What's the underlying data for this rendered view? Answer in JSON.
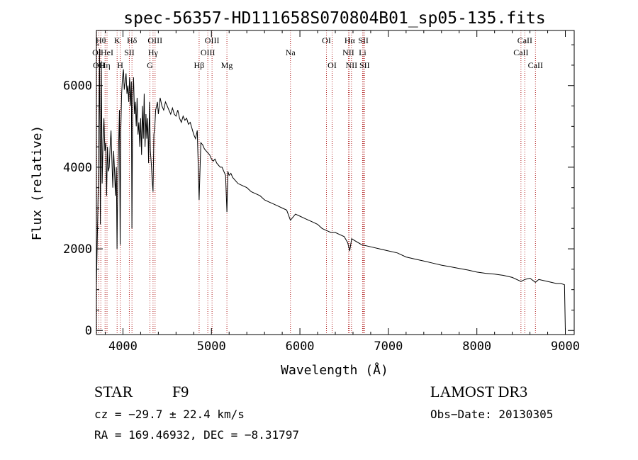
{
  "chart_data": {
    "type": "line",
    "title": "spec-56357-HD111658S070804B01_sp05-135.fits",
    "xlabel": "Wavelength (Å)",
    "ylabel": "Flux (relative)",
    "xlim": [
      3700,
      9100
    ],
    "ylim": [
      -100,
      7350
    ],
    "xticks": [
      4000,
      5000,
      6000,
      7000,
      8000,
      9000
    ],
    "yticks": [
      0,
      2000,
      4000,
      6000
    ],
    "grid": false,
    "line_color": "#000000",
    "marker_color": "#b22222",
    "spectrum": {
      "x": [
        3700,
        3715,
        3725,
        3735,
        3745,
        3755,
        3765,
        3775,
        3785,
        3795,
        3805,
        3815,
        3825,
        3835,
        3845,
        3855,
        3865,
        3875,
        3885,
        3895,
        3905,
        3915,
        3925,
        3933,
        3940,
        3950,
        3960,
        3968,
        3975,
        3985,
        3995,
        4005,
        4015,
        4025,
        4035,
        4045,
        4055,
        4065,
        4075,
        4085,
        4095,
        4101,
        4110,
        4120,
        4130,
        4140,
        4150,
        4160,
        4170,
        4180,
        4190,
        4200,
        4210,
        4220,
        4230,
        4240,
        4250,
        4260,
        4270,
        4280,
        4290,
        4300,
        4310,
        4320,
        4330,
        4340,
        4350,
        4360,
        4370,
        4380,
        4390,
        4400,
        4420,
        4440,
        4460,
        4480,
        4500,
        4520,
        4540,
        4560,
        4580,
        4600,
        4620,
        4640,
        4660,
        4680,
        4700,
        4720,
        4740,
        4760,
        4780,
        4800,
        4820,
        4840,
        4861,
        4880,
        4900,
        4920,
        4940,
        4960,
        4980,
        5000,
        5020,
        5040,
        5060,
        5080,
        5100,
        5120,
        5140,
        5160,
        5175,
        5185,
        5200,
        5220,
        5240,
        5260,
        5280,
        5300,
        5350,
        5400,
        5450,
        5500,
        5550,
        5600,
        5650,
        5700,
        5750,
        5800,
        5850,
        5893,
        5950,
        6000,
        6050,
        6100,
        6150,
        6200,
        6250,
        6300,
        6350,
        6400,
        6450,
        6500,
        6540,
        6563,
        6585,
        6620,
        6700,
        6800,
        6900,
        7000,
        7100,
        7200,
        7300,
        7400,
        7500,
        7600,
        7700,
        7800,
        7900,
        8000,
        8100,
        8200,
        8300,
        8400,
        8498,
        8542,
        8600,
        8662,
        8700,
        8800,
        8900,
        8950,
        8990,
        9000
      ],
      "y": [
        1100,
        2800,
        4200,
        6900,
        2600,
        6600,
        3600,
        4700,
        5200,
        4400,
        4600,
        3300,
        4500,
        3900,
        4000,
        4500,
        4900,
        4200,
        3500,
        4400,
        3900,
        3300,
        4000,
        2000,
        3600,
        4400,
        5400,
        2100,
        4800,
        5800,
        6200,
        6400,
        5900,
        6100,
        6300,
        5800,
        6000,
        5600,
        6200,
        5500,
        6100,
        2500,
        5700,
        6200,
        5300,
        5600,
        5000,
        5700,
        4800,
        5100,
        4500,
        5200,
        4300,
        5500,
        4700,
        5800,
        4500,
        5300,
        4700,
        5200,
        4100,
        5600,
        4400,
        4100,
        3700,
        3400,
        4800,
        5000,
        5400,
        5500,
        5600,
        5300,
        5700,
        5500,
        5400,
        5600,
        5500,
        5400,
        5300,
        5450,
        5300,
        5250,
        5400,
        5200,
        5100,
        5250,
        5150,
        5200,
        5050,
        5100,
        4950,
        4800,
        4700,
        4900,
        3200,
        4600,
        4550,
        4450,
        4400,
        4350,
        4300,
        4200,
        4150,
        4200,
        4100,
        4050,
        4000,
        4000,
        3900,
        3800,
        2900,
        3900,
        3800,
        3850,
        3750,
        3700,
        3650,
        3600,
        3550,
        3500,
        3400,
        3350,
        3300,
        3200,
        3150,
        3100,
        3050,
        3000,
        2950,
        2700,
        2850,
        2800,
        2750,
        2700,
        2650,
        2600,
        2500,
        2450,
        2400,
        2400,
        2350,
        2300,
        2150,
        1950,
        2250,
        2200,
        2100,
        2050,
        2000,
        1950,
        1900,
        1800,
        1750,
        1700,
        1650,
        1600,
        1560,
        1520,
        1480,
        1430,
        1400,
        1380,
        1350,
        1300,
        1200,
        1250,
        1280,
        1180,
        1250,
        1200,
        1150,
        1150,
        1120,
        0
      ]
    },
    "markers": [
      {
        "label": "OI",
        "x": 3704,
        "row": 1
      },
      {
        "label": "OII",
        "x": 3727,
        "row": 2
      },
      {
        "label": "Hθ",
        "x": 3750,
        "row": 0
      },
      {
        "label": "Hη",
        "x": 3798,
        "row": 2
      },
      {
        "label": "HeI",
        "x": 3820,
        "row": 1
      },
      {
        "label": "K",
        "x": 3934,
        "row": 0
      },
      {
        "label": "H",
        "x": 3969,
        "row": 2
      },
      {
        "label": "SII",
        "x": 4072,
        "row": 1
      },
      {
        "label": "Hδ",
        "x": 4102,
        "row": 0
      },
      {
        "label": "G",
        "x": 4305,
        "row": 2
      },
      {
        "label": "Hγ",
        "x": 4340,
        "row": 1
      },
      {
        "label": "OIII",
        "x": 4363,
        "row": 0
      },
      {
        "label": "Hβ",
        "x": 4861,
        "row": 2
      },
      {
        "label": "OIII",
        "x": 4959,
        "row": 1
      },
      {
        "label": "OIII",
        "x": 5007,
        "row": 0
      },
      {
        "label": "Mg",
        "x": 5175,
        "row": 2
      },
      {
        "label": "Na",
        "x": 5893,
        "row": 1
      },
      {
        "label": "OI",
        "x": 6300,
        "row": 0
      },
      {
        "label": "OI",
        "x": 6364,
        "row": 2
      },
      {
        "label": "NII",
        "x": 6548,
        "row": 1
      },
      {
        "label": "Hα",
        "x": 6563,
        "row": 0
      },
      {
        "label": "NII",
        "x": 6583,
        "row": 2
      },
      {
        "label": "Li",
        "x": 6708,
        "row": 1
      },
      {
        "label": "SII",
        "x": 6717,
        "row": 0
      },
      {
        "label": "SII",
        "x": 6731,
        "row": 2
      },
      {
        "label": "CaII",
        "x": 8498,
        "row": 1
      },
      {
        "label": "CaII",
        "x": 8542,
        "row": 0
      },
      {
        "label": "CaII",
        "x": 8662,
        "row": 2
      }
    ]
  },
  "info": {
    "class_label": "STAR",
    "subclass_label": "F9",
    "survey_label": "LAMOST DR3",
    "cz_text": "cz = −29.7 ± 22.4 km/s",
    "obs_date_text": "Obs−Date: 20130305",
    "coords_text": "RA = 169.46932, DEC =  −8.31797"
  }
}
